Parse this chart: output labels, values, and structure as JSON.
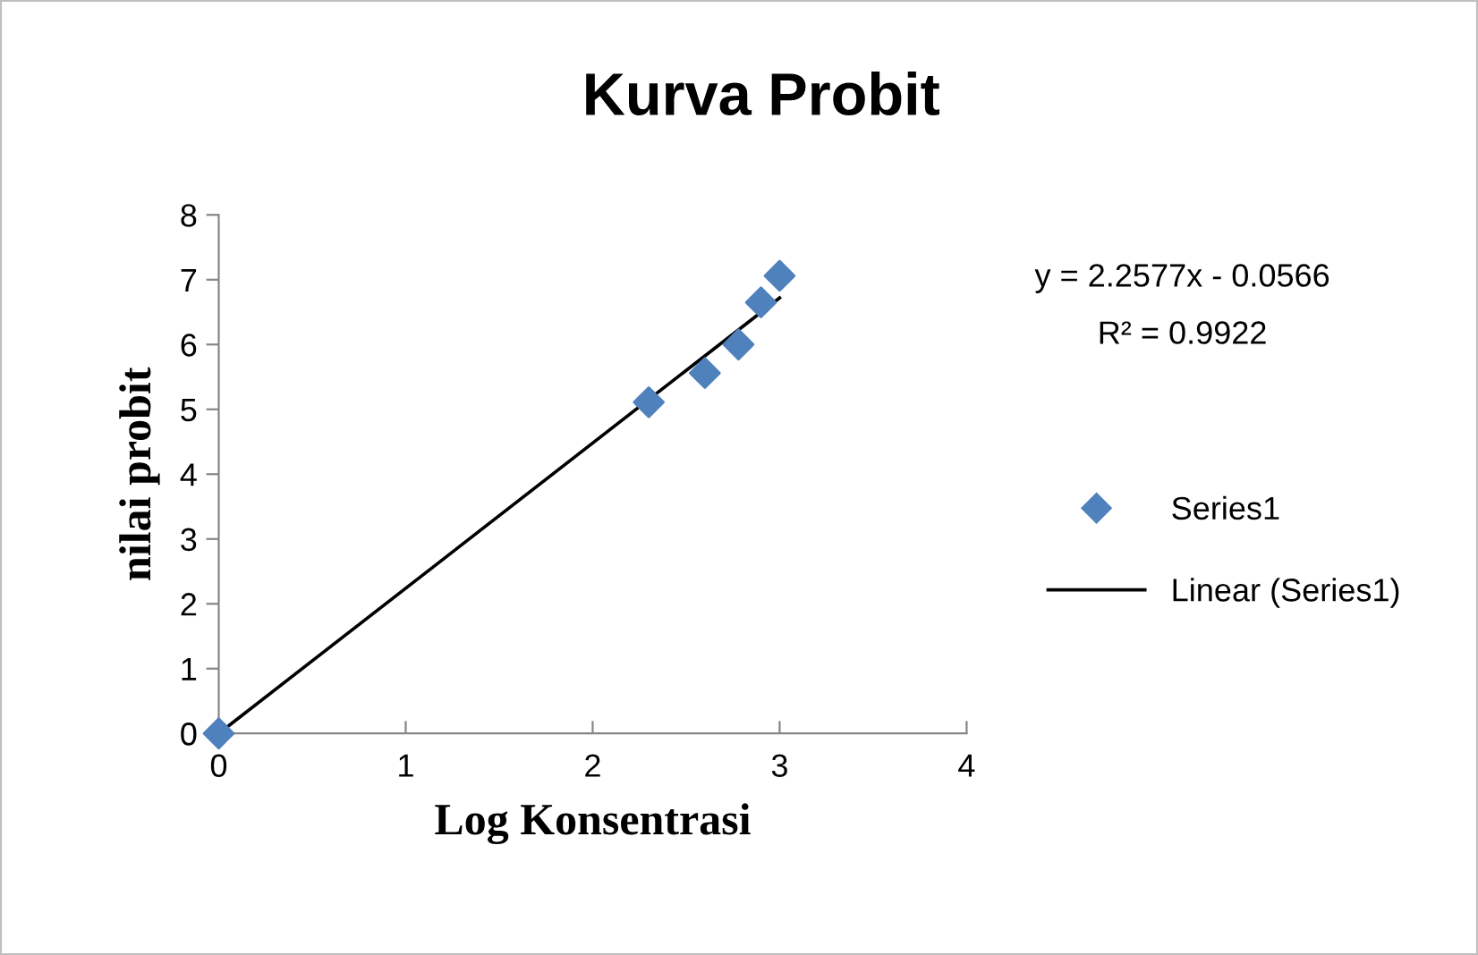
{
  "chart_data": {
    "type": "scatter",
    "title": "Kurva Probit",
    "xlabel": "Log Konsentrasi",
    "ylabel": "nilai probit",
    "xlim": [
      0,
      4
    ],
    "xticks": [
      0,
      1,
      2,
      3,
      4
    ],
    "ylim": [
      0,
      8
    ],
    "yticks": [
      0,
      1,
      2,
      3,
      4,
      5,
      6,
      7,
      8
    ],
    "grid": false,
    "legend": "right",
    "series": [
      {
        "name": "Series1",
        "color": "#4f81bd",
        "marker": "diamond",
        "x": [
          0,
          2.3,
          2.6,
          2.78,
          2.9,
          3.0
        ],
        "values": [
          0,
          5.11,
          5.56,
          6.0,
          6.65,
          7.06
        ]
      },
      {
        "name": "Linear (Series1)",
        "type": "line",
        "color": "#000000",
        "marker": "none",
        "line_style": "solid",
        "x": [
          0,
          3.0
        ],
        "values": [
          0,
          6.72
        ]
      }
    ],
    "annotations": [
      "y = 2.2577x - 0.0566",
      "R² = 0.9922"
    ]
  }
}
